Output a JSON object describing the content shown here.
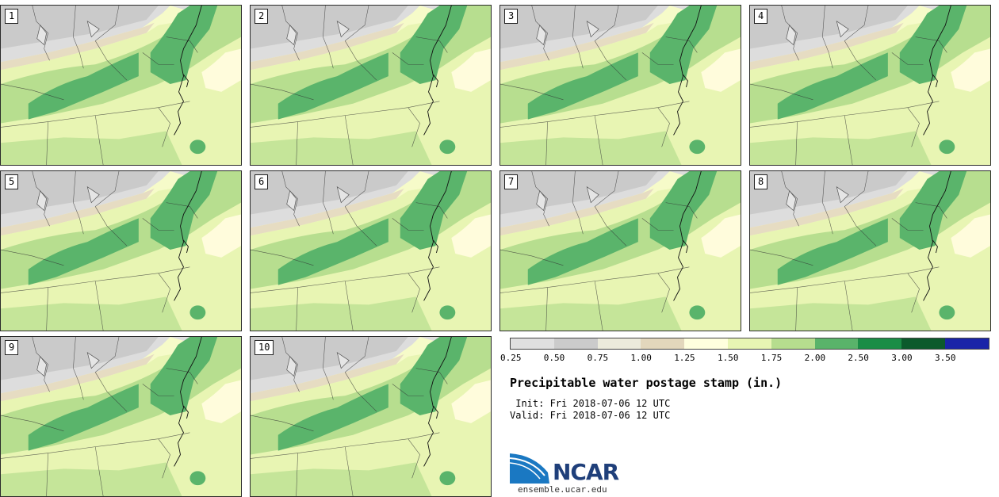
{
  "panels": [
    {
      "label": "1"
    },
    {
      "label": "2"
    },
    {
      "label": "3"
    },
    {
      "label": "4"
    },
    {
      "label": "5"
    },
    {
      "label": "6"
    },
    {
      "label": "7"
    },
    {
      "label": "8"
    },
    {
      "label": "9"
    },
    {
      "label": "10"
    }
  ],
  "colorbar": {
    "colors": [
      "#e0e0e0",
      "#cbcbcb",
      "#ecebdc",
      "#e3d7bc",
      "#ffffde",
      "#e8f5b3",
      "#b6dd8e",
      "#59b36a",
      "#1a8d46",
      "#0c5a2c",
      "#1a24a8"
    ],
    "ticks": [
      "0.25",
      "0.50",
      "0.75",
      "1.00",
      "1.25",
      "1.50",
      "1.75",
      "2.00",
      "2.50",
      "3.00",
      "3.50"
    ]
  },
  "title": "Precipitable water postage stamp (in.)",
  "init": " Init: Fri 2018-07-06 12 UTC",
  "valid": "Valid: Fri 2018-07-06 12 UTC",
  "logo": {
    "text": "NCAR",
    "url": "ensemble.ucar.edu"
  }
}
